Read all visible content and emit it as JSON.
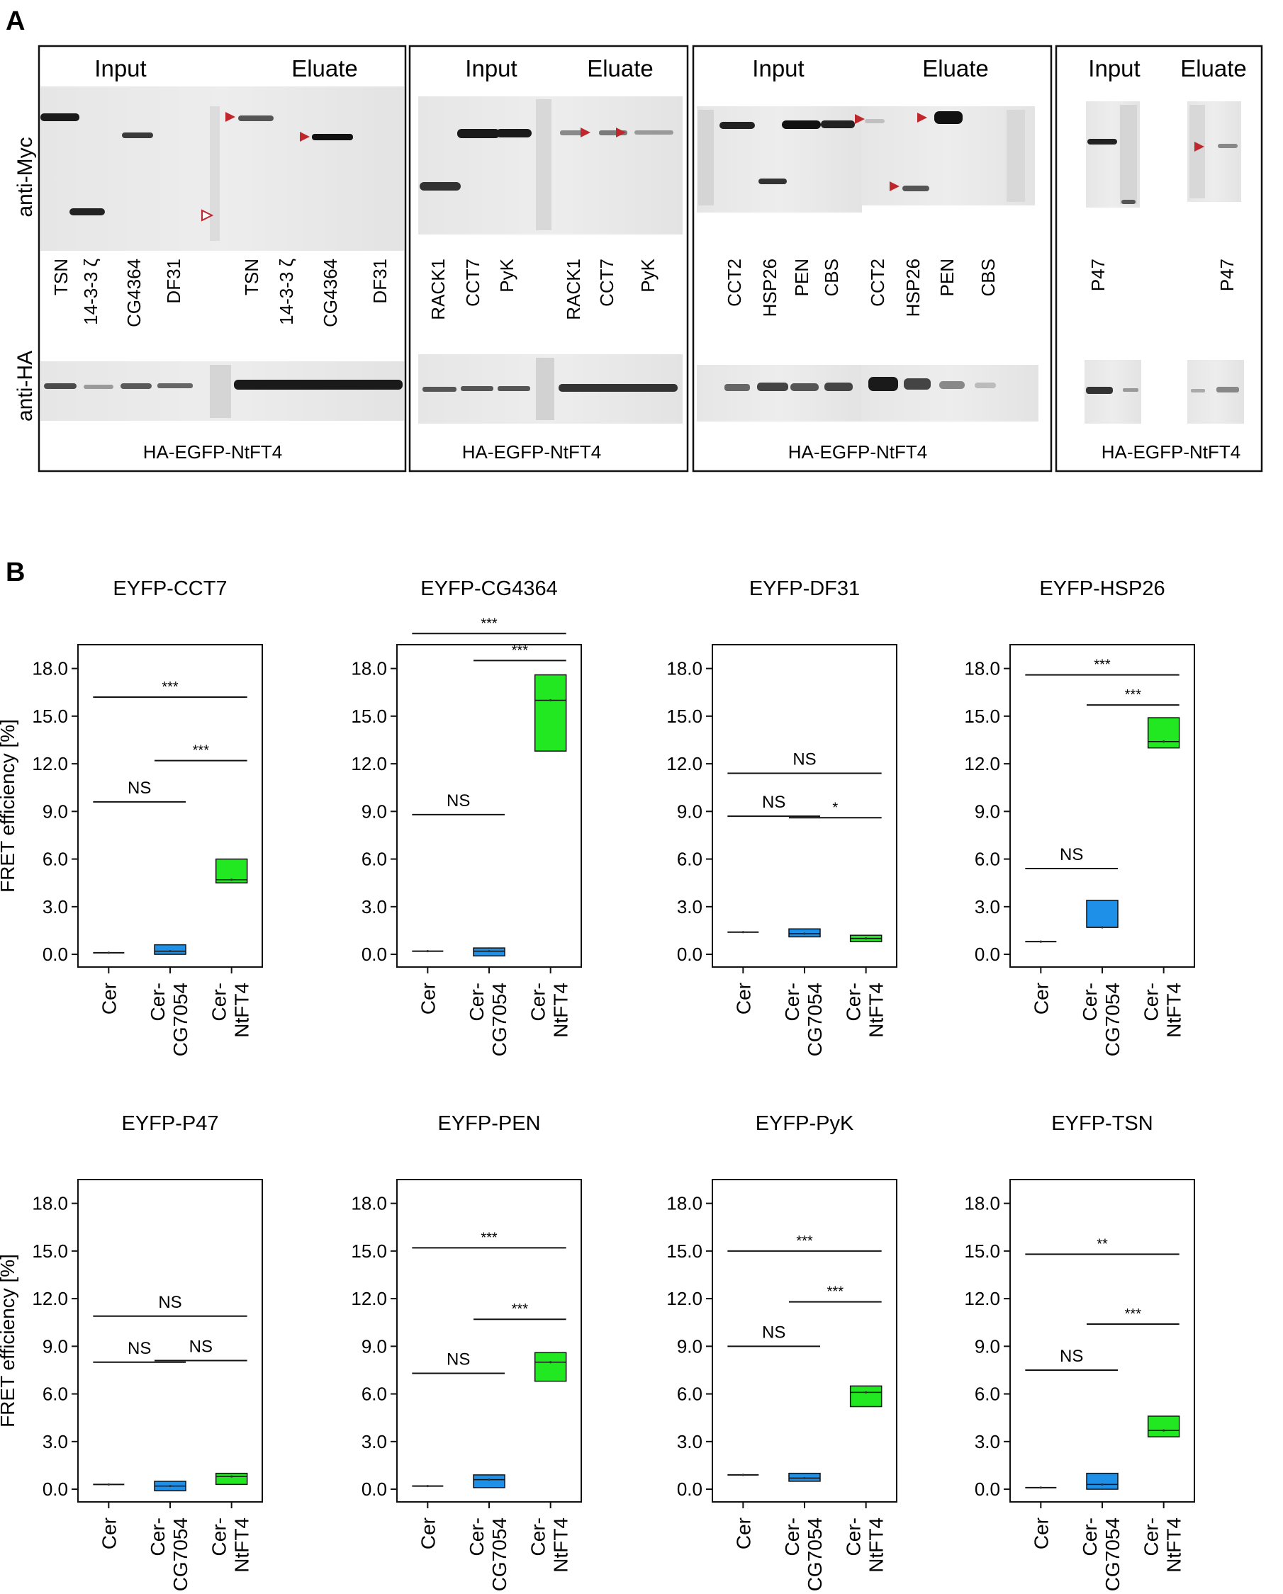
{
  "panel_a": {
    "letter": "A",
    "row_labels": {
      "myc": "anti-Myc",
      "ha": "anti-HA"
    },
    "boxes": [
      {
        "input": "Input",
        "eluate": "Eluate",
        "lanes": [
          "TSN",
          "14-3-3 ζ",
          "CG4364",
          "DF31",
          "TSN",
          "14-3-3 ζ",
          "CG4364",
          "DF31"
        ],
        "footer": "HA-EGFP-NtFT4"
      },
      {
        "input": "Input",
        "eluate": "Eluate",
        "lanes": [
          "RACK1",
          "CCT7",
          "PyK",
          "RACK1",
          "CCT7",
          "PyK"
        ],
        "footer": "HA-EGFP-NtFT4"
      },
      {
        "input": "Input",
        "eluate": "Eluate",
        "lanes": [
          "CCT2",
          "HSP26",
          "PEN",
          "CBS",
          "CCT2",
          "HSP26",
          "PEN",
          "CBS"
        ],
        "footer": "HA-EGFP-NtFT4"
      },
      {
        "input": "Input",
        "eluate": "Eluate",
        "lanes": [
          "P47",
          "P47"
        ],
        "footer": "HA-EGFP-NtFT4"
      }
    ]
  },
  "panel_b": {
    "letter": "B",
    "ylabel": "FRET efficiency [%]",
    "categories": [
      "Cer",
      "Cer-\nCG7054",
      "Cer-\nNtFT4"
    ],
    "colors": {
      "cer": "#222222",
      "cg7054": "#1e90e8",
      "ntft4": "#22e822"
    }
  },
  "chart_data": [
    {
      "type": "box",
      "title": "EYFP-CCT7",
      "ylabel": "FRET efficiency [%]",
      "yticks": [
        0.0,
        3.0,
        6.0,
        9.0,
        12.0,
        15.0,
        18.0
      ],
      "ylim": [
        -0.8,
        19.5
      ],
      "categories": [
        "Cer",
        "Cer-CG7054",
        "Cer-NtFT4"
      ],
      "boxes": [
        {
          "q1": 0.1,
          "median": 0.1,
          "q3": 0.1
        },
        {
          "q1": 0.0,
          "median": 0.2,
          "q3": 0.6
        },
        {
          "q1": 4.5,
          "median": 4.7,
          "q3": 6.0
        }
      ],
      "significance": [
        {
          "from": 0,
          "to": 1,
          "y": 9.6,
          "label": "NS"
        },
        {
          "from": 1,
          "to": 2,
          "y": 12.2,
          "label": "***"
        },
        {
          "from": 0,
          "to": 2,
          "y": 16.2,
          "label": "***"
        }
      ]
    },
    {
      "type": "box",
      "title": "EYFP-CG4364",
      "ylabel": "",
      "yticks": [
        0.0,
        3.0,
        6.0,
        9.0,
        12.0,
        15.0,
        18.0
      ],
      "ylim": [
        -0.8,
        19.5
      ],
      "categories": [
        "Cer",
        "Cer-CG7054",
        "Cer-NtFT4"
      ],
      "boxes": [
        {
          "q1": 0.2,
          "median": 0.2,
          "q3": 0.2
        },
        {
          "q1": -0.1,
          "median": 0.2,
          "q3": 0.4
        },
        {
          "q1": 12.8,
          "median": 16.0,
          "q3": 17.6
        }
      ],
      "significance": [
        {
          "from": 0,
          "to": 1,
          "y": 8.8,
          "label": "NS"
        },
        {
          "from": 1,
          "to": 2,
          "y": 18.5,
          "label": "***"
        },
        {
          "from": 0,
          "to": 2,
          "y": 20.2,
          "label": "***"
        }
      ]
    },
    {
      "type": "box",
      "title": "EYFP-DF31",
      "ylabel": "",
      "yticks": [
        0.0,
        3.0,
        6.0,
        9.0,
        12.0,
        15.0,
        18.0
      ],
      "ylim": [
        -0.8,
        19.5
      ],
      "categories": [
        "Cer",
        "Cer-CG7054",
        "Cer-NtFT4"
      ],
      "boxes": [
        {
          "q1": 1.4,
          "median": 1.4,
          "q3": 1.4
        },
        {
          "q1": 1.1,
          "median": 1.3,
          "q3": 1.6
        },
        {
          "q1": 0.8,
          "median": 1.0,
          "q3": 1.2
        }
      ],
      "significance": [
        {
          "from": 0,
          "to": 1,
          "y": 8.7,
          "label": "NS"
        },
        {
          "from": 1,
          "to": 2,
          "y": 8.6,
          "label": "*"
        },
        {
          "from": 0,
          "to": 2,
          "y": 11.4,
          "label": "NS"
        }
      ]
    },
    {
      "type": "box",
      "title": "EYFP-HSP26",
      "ylabel": "",
      "yticks": [
        0.0,
        3.0,
        6.0,
        9.0,
        12.0,
        15.0,
        18.0
      ],
      "ylim": [
        -0.8,
        19.5
      ],
      "categories": [
        "Cer",
        "Cer-CG7054",
        "Cer-NtFT4"
      ],
      "boxes": [
        {
          "q1": 0.8,
          "median": 0.8,
          "q3": 0.8
        },
        {
          "q1": 1.7,
          "median": 1.7,
          "q3": 3.4
        },
        {
          "q1": 13.0,
          "median": 13.4,
          "q3": 14.9
        }
      ],
      "significance": [
        {
          "from": 0,
          "to": 1,
          "y": 5.4,
          "label": "NS"
        },
        {
          "from": 1,
          "to": 2,
          "y": 15.7,
          "label": "***"
        },
        {
          "from": 0,
          "to": 2,
          "y": 17.6,
          "label": "***"
        }
      ]
    },
    {
      "type": "box",
      "title": "EYFP-P47",
      "ylabel": "FRET efficiency [%]",
      "yticks": [
        0.0,
        3.0,
        6.0,
        9.0,
        12.0,
        15.0,
        18.0
      ],
      "ylim": [
        -0.8,
        19.5
      ],
      "categories": [
        "Cer",
        "Cer-CG7054",
        "Cer-NtFT4"
      ],
      "boxes": [
        {
          "q1": 0.3,
          "median": 0.3,
          "q3": 0.3
        },
        {
          "q1": -0.1,
          "median": 0.2,
          "q3": 0.5
        },
        {
          "q1": 0.3,
          "median": 0.8,
          "q3": 1.0
        }
      ],
      "significance": [
        {
          "from": 0,
          "to": 1,
          "y": 8.0,
          "label": "NS"
        },
        {
          "from": 1,
          "to": 2,
          "y": 8.1,
          "label": "NS"
        },
        {
          "from": 0,
          "to": 2,
          "y": 10.9,
          "label": "NS"
        }
      ]
    },
    {
      "type": "box",
      "title": "EYFP-PEN",
      "ylabel": "",
      "yticks": [
        0.0,
        3.0,
        6.0,
        9.0,
        12.0,
        15.0,
        18.0
      ],
      "ylim": [
        -0.8,
        19.5
      ],
      "categories": [
        "Cer",
        "Cer-CG7054",
        "Cer-NtFT4"
      ],
      "boxes": [
        {
          "q1": 0.2,
          "median": 0.2,
          "q3": 0.2
        },
        {
          "q1": 0.1,
          "median": 0.6,
          "q3": 0.9
        },
        {
          "q1": 6.8,
          "median": 8.0,
          "q3": 8.6
        }
      ],
      "significance": [
        {
          "from": 0,
          "to": 1,
          "y": 7.3,
          "label": "NS"
        },
        {
          "from": 1,
          "to": 2,
          "y": 10.7,
          "label": "***"
        },
        {
          "from": 0,
          "to": 2,
          "y": 15.2,
          "label": "***"
        }
      ]
    },
    {
      "type": "box",
      "title": "EYFP-PyK",
      "ylabel": "",
      "yticks": [
        0.0,
        3.0,
        6.0,
        9.0,
        12.0,
        15.0,
        18.0
      ],
      "ylim": [
        -0.8,
        19.5
      ],
      "categories": [
        "Cer",
        "Cer-CG7054",
        "Cer-NtFT4"
      ],
      "boxes": [
        {
          "q1": 0.9,
          "median": 0.9,
          "q3": 0.9
        },
        {
          "q1": 0.5,
          "median": 0.7,
          "q3": 1.0
        },
        {
          "q1": 5.2,
          "median": 6.1,
          "q3": 6.5
        }
      ],
      "significance": [
        {
          "from": 0,
          "to": 1,
          "y": 9.0,
          "label": "NS"
        },
        {
          "from": 1,
          "to": 2,
          "y": 11.8,
          "label": "***"
        },
        {
          "from": 0,
          "to": 2,
          "y": 15.0,
          "label": "***"
        }
      ]
    },
    {
      "type": "box",
      "title": "EYFP-TSN",
      "ylabel": "",
      "yticks": [
        0.0,
        3.0,
        6.0,
        9.0,
        12.0,
        15.0,
        18.0
      ],
      "ylim": [
        -0.8,
        19.5
      ],
      "categories": [
        "Cer",
        "Cer-CG7054",
        "Cer-NtFT4"
      ],
      "boxes": [
        {
          "q1": 0.1,
          "median": 0.1,
          "q3": 0.1
        },
        {
          "q1": 0.0,
          "median": 0.3,
          "q3": 1.0
        },
        {
          "q1": 3.3,
          "median": 3.7,
          "q3": 4.6
        }
      ],
      "significance": [
        {
          "from": 0,
          "to": 1,
          "y": 7.5,
          "label": "NS"
        },
        {
          "from": 1,
          "to": 2,
          "y": 10.4,
          "label": "***"
        },
        {
          "from": 0,
          "to": 2,
          "y": 14.8,
          "label": "**"
        }
      ]
    }
  ]
}
